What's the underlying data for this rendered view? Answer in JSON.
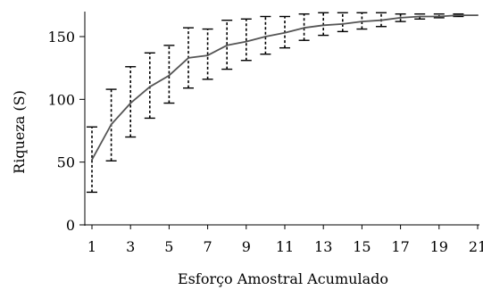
{
  "chart_data": {
    "type": "line",
    "xlabel": "Esforço Amostral Acumulado",
    "ylabel": "Riqueza (S)",
    "xlim": [
      1,
      21
    ],
    "ylim": [
      0,
      170
    ],
    "x_ticks": [
      1,
      3,
      5,
      7,
      9,
      11,
      13,
      15,
      17,
      19,
      21
    ],
    "y_ticks": [
      0,
      50,
      100,
      150
    ],
    "grid": false,
    "legend": "none",
    "series": [
      {
        "x": [
          1,
          2,
          3,
          4,
          5,
          6,
          7,
          8,
          9,
          10,
          11,
          12,
          13,
          14,
          15,
          16,
          17,
          18,
          19,
          20,
          21
        ],
        "y": [
          52,
          80,
          97,
          110,
          119,
          133,
          135,
          143,
          146,
          150,
          153,
          157,
          159,
          160,
          162,
          163,
          165,
          166,
          166,
          167,
          167
        ],
        "error_low": [
          26,
          51,
          70,
          85,
          97,
          109,
          116,
          124,
          131,
          136,
          141,
          147,
          151,
          154,
          156,
          158,
          162,
          164,
          165,
          166,
          167
        ],
        "error_high": [
          78,
          108,
          126,
          137,
          143,
          157,
          156,
          163,
          164,
          166,
          166,
          168,
          169,
          169,
          169,
          169,
          168,
          168,
          168,
          168,
          167
        ]
      }
    ],
    "colors": {
      "line": "#555555",
      "error_bar": "#000000",
      "axis": "#000000"
    }
  }
}
